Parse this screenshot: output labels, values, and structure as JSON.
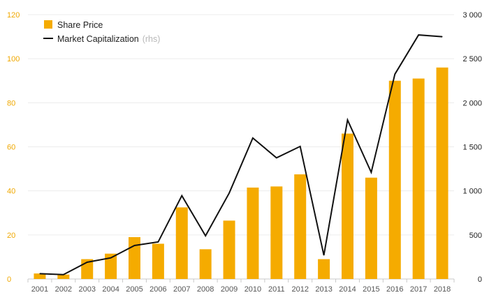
{
  "chart_data": {
    "type": "bar",
    "categories": [
      "2001",
      "2002",
      "2003",
      "2004",
      "2005",
      "2006",
      "2007",
      "2008",
      "2009",
      "2010",
      "2011",
      "2012",
      "2013",
      "2014",
      "2015",
      "2016",
      "2017",
      "2018"
    ],
    "series": [
      {
        "name": "Share Price",
        "type": "bar",
        "axis": "left",
        "color": "#f5ab00",
        "values": [
          2.5,
          2,
          9,
          11.5,
          19,
          16,
          32.5,
          13.5,
          26.5,
          41.5,
          42,
          47.5,
          9,
          66,
          46,
          90,
          91,
          96
        ]
      },
      {
        "name": "Market Capitalization",
        "name_suffix": "(rhs)",
        "type": "line",
        "axis": "right",
        "color": "#111111",
        "values": [
          60,
          50,
          190,
          240,
          380,
          420,
          945,
          490,
          975,
          1600,
          1375,
          1505,
          270,
          1805,
          1210,
          2325,
          2770,
          2750
        ]
      }
    ],
    "y_left": {
      "min": 0,
      "max": 120,
      "ticks": [
        0,
        20,
        40,
        60,
        80,
        100,
        120
      ],
      "tick_labels": [
        "0",
        "20",
        "40",
        "60",
        "80",
        "100",
        "120"
      ]
    },
    "y_right": {
      "min": 0,
      "max": 3000,
      "ticks": [
        0,
        500,
        1000,
        1500,
        2000,
        2500,
        3000
      ],
      "tick_labels": [
        "0",
        "500",
        "1 000",
        "1 500",
        "2 000",
        "2 500",
        "3 000"
      ]
    },
    "grid": true,
    "legend": "top-left"
  }
}
